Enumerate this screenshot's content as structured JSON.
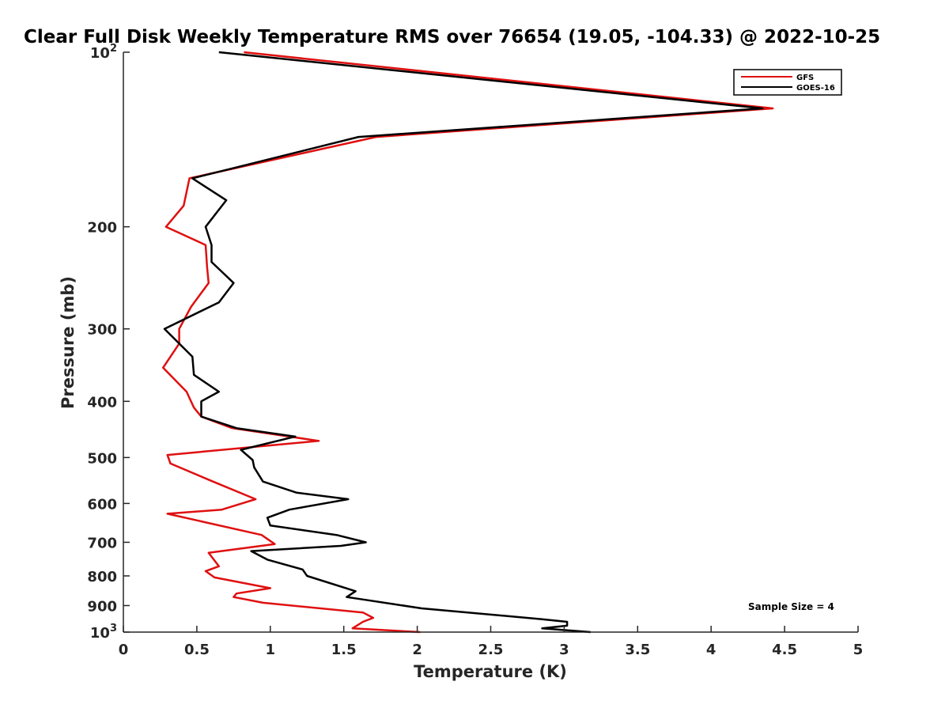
{
  "chart_data": {
    "type": "line",
    "title": "Clear Full Disk Weekly Temperature RMS over 76654 (19.05, -104.33) @ 2022-10-25",
    "xlabel": "Temperature (K)",
    "ylabel": "Pressure (mb)",
    "xlim": [
      0,
      5
    ],
    "ylim": [
      100,
      1000
    ],
    "y_scale": "log",
    "y_reversed": true,
    "grid": false,
    "legend_position": "top-right",
    "x_ticks": [
      "0",
      "0.5",
      "1",
      "1.5",
      "2",
      "2.5",
      "3",
      "3.5",
      "4",
      "4.5",
      "5"
    ],
    "x_tick_values": [
      0,
      0.5,
      1,
      1.5,
      2,
      2.5,
      3,
      3.5,
      4,
      4.5,
      5
    ],
    "y_ticks": [
      {
        "value": 100,
        "base": "10",
        "exp": "2"
      },
      {
        "value": 200,
        "label": "200"
      },
      {
        "value": 300,
        "label": "300"
      },
      {
        "value": 400,
        "label": "400"
      },
      {
        "value": 500,
        "label": "500"
      },
      {
        "value": 600,
        "label": "600"
      },
      {
        "value": 700,
        "label": "700"
      },
      {
        "value": 800,
        "label": "800"
      },
      {
        "value": 900,
        "label": "900"
      },
      {
        "value": 1000,
        "base": "10",
        "exp": "3"
      }
    ],
    "annotation": "Sample Size = 4",
    "series": [
      {
        "name": "GFS",
        "color": "#e01010",
        "points": [
          [
            0.82,
            100
          ],
          [
            4.42,
            125
          ],
          [
            1.72,
            140
          ],
          [
            0.45,
            165
          ],
          [
            0.41,
            184
          ],
          [
            0.29,
            200
          ],
          [
            0.56,
            215
          ],
          [
            0.57,
            235
          ],
          [
            0.58,
            250
          ],
          [
            0.46,
            275
          ],
          [
            0.38,
            300
          ],
          [
            0.38,
            318
          ],
          [
            0.27,
            350
          ],
          [
            0.43,
            385
          ],
          [
            0.48,
            410
          ],
          [
            0.53,
            425
          ],
          [
            0.74,
            445
          ],
          [
            1.33,
            468
          ],
          [
            0.3,
            495
          ],
          [
            0.32,
            512
          ],
          [
            0.61,
            550
          ],
          [
            0.9,
            590
          ],
          [
            0.67,
            615
          ],
          [
            0.3,
            625
          ],
          [
            0.94,
            680
          ],
          [
            1.03,
            705
          ],
          [
            0.58,
            730
          ],
          [
            0.65,
            770
          ],
          [
            0.56,
            785
          ],
          [
            0.62,
            805
          ],
          [
            1.0,
            840
          ],
          [
            0.77,
            858
          ],
          [
            0.75,
            870
          ],
          [
            0.95,
            890
          ],
          [
            1.63,
            925
          ],
          [
            1.7,
            945
          ],
          [
            1.63,
            960
          ],
          [
            1.56,
            985
          ],
          [
            2.02,
            1000
          ]
        ]
      },
      {
        "name": "GOES-16",
        "color": "#000000",
        "points": [
          [
            0.65,
            100
          ],
          [
            4.35,
            125
          ],
          [
            1.6,
            140
          ],
          [
            0.47,
            165
          ],
          [
            0.7,
            180
          ],
          [
            0.56,
            200
          ],
          [
            0.6,
            215
          ],
          [
            0.6,
            230
          ],
          [
            0.75,
            250
          ],
          [
            0.65,
            270
          ],
          [
            0.28,
            300
          ],
          [
            0.47,
            335
          ],
          [
            0.48,
            360
          ],
          [
            0.65,
            385
          ],
          [
            0.53,
            400
          ],
          [
            0.53,
            425
          ],
          [
            0.77,
            445
          ],
          [
            1.17,
            460
          ],
          [
            0.8,
            485
          ],
          [
            0.88,
            505
          ],
          [
            0.89,
            520
          ],
          [
            0.95,
            550
          ],
          [
            1.18,
            575
          ],
          [
            1.53,
            590
          ],
          [
            1.13,
            615
          ],
          [
            0.98,
            635
          ],
          [
            1.0,
            655
          ],
          [
            1.45,
            680
          ],
          [
            1.65,
            700
          ],
          [
            1.48,
            710
          ],
          [
            0.87,
            725
          ],
          [
            0.98,
            750
          ],
          [
            1.22,
            780
          ],
          [
            1.25,
            800
          ],
          [
            1.58,
            850
          ],
          [
            1.52,
            870
          ],
          [
            1.65,
            880
          ],
          [
            2.03,
            910
          ],
          [
            2.85,
            950
          ],
          [
            3.02,
            960
          ],
          [
            3.02,
            975
          ],
          [
            2.85,
            985
          ],
          [
            3.18,
            1000
          ]
        ]
      }
    ]
  }
}
